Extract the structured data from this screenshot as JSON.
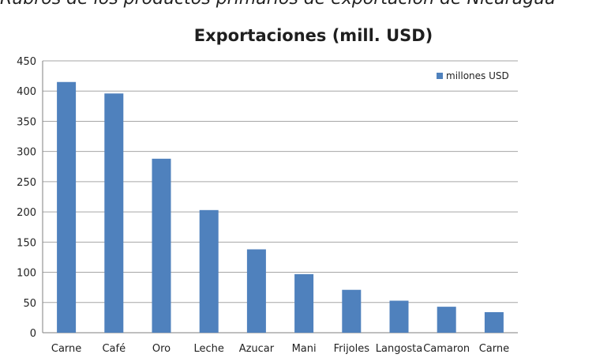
{
  "page": {
    "top_caption": "Rubros de los productos primarios de exportación de Nicaragua"
  },
  "chart_data": {
    "type": "bar",
    "title": "Exportaciones (mill. USD)",
    "categories": [
      "Carne",
      "Café",
      "Oro",
      "Leche",
      "Azucar",
      "Mani",
      "Frijoles",
      "Langosta",
      "Camaron",
      "Carne"
    ],
    "series": [
      {
        "name": "millones USD",
        "values": [
          415,
          396,
          288,
          203,
          138,
          97,
          71,
          53,
          43,
          34
        ]
      }
    ],
    "ylim": [
      0,
      450
    ],
    "yticks": [
      0,
      50,
      100,
      150,
      200,
      250,
      300,
      350,
      400,
      450
    ],
    "xlabel": "",
    "ylabel": "",
    "grid": true,
    "legend": "top-right",
    "colors": {
      "bar": "#4f81bd",
      "grid": "#a6a6a6",
      "axis": "#7f7f7f"
    }
  }
}
